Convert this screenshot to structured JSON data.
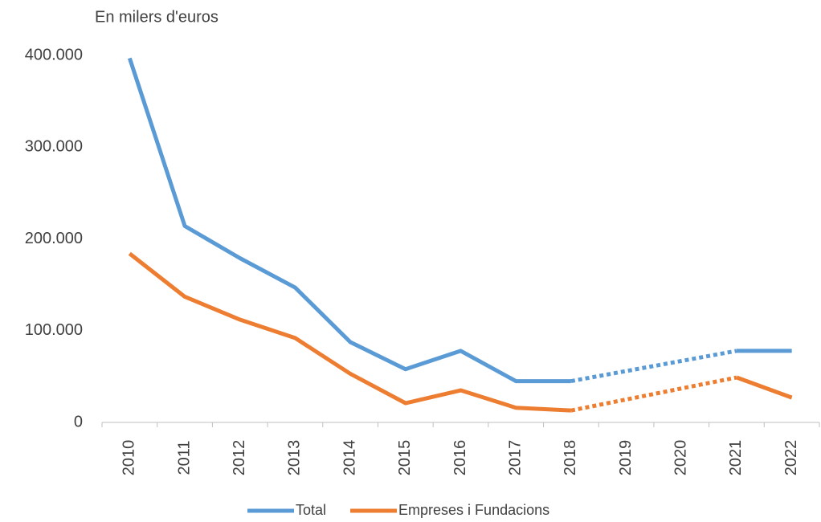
{
  "chart_data": {
    "type": "line",
    "y_axis_label": "En milers d'euros",
    "categories": [
      "2010",
      "2011",
      "2012",
      "2013",
      "2014",
      "2015",
      "2016",
      "2017",
      "2018",
      "2019",
      "2020",
      "2021",
      "2022"
    ],
    "series": [
      {
        "name": "Total",
        "color": "#5b9bd5",
        "values": [
          397000,
          214000,
          179000,
          147000,
          87500,
          58000,
          78000,
          45000,
          45000,
          null,
          null,
          78000,
          78000
        ]
      },
      {
        "name": "Empreses i Fundacions",
        "color": "#ed7d31",
        "values": [
          184000,
          137000,
          112000,
          92000,
          53000,
          21000,
          35000,
          16000,
          13000,
          null,
          null,
          49000,
          27000
        ]
      }
    ],
    "ylim": [
      0,
      400000
    ],
    "yticks": [
      0,
      {
        "value": 100000,
        "label": "100.000"
      },
      {
        "value": 200000,
        "label": "200.000"
      },
      {
        "value": 300000,
        "label": "300.000"
      },
      {
        "value": 400000,
        "label": "400.000"
      }
    ],
    "grid": false,
    "legend": "bottom"
  }
}
